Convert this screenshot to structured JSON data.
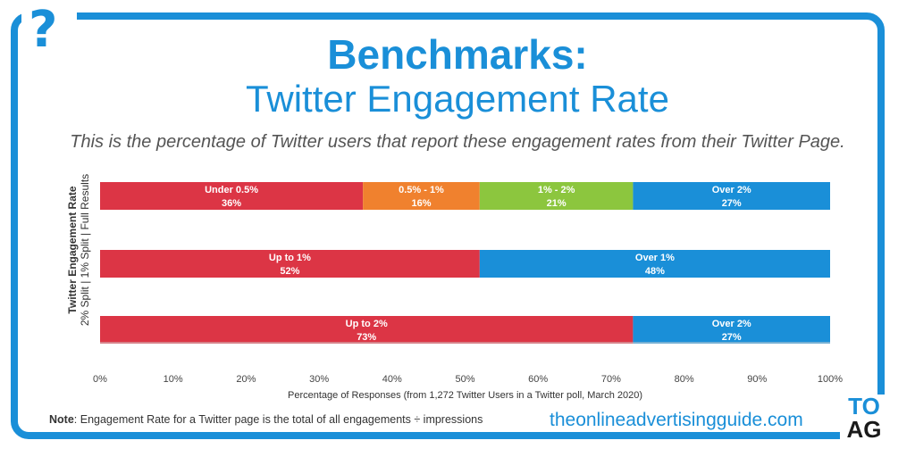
{
  "header": {
    "title_line1": "Benchmarks:",
    "title_line2": "Twitter Engagement Rate",
    "subtitle": "This is the percentage of Twitter users that report these engagement rates from their Twitter Page.",
    "icon": "question-mark-icon",
    "icon_glyph": "?"
  },
  "chart_data": {
    "type": "bar",
    "orientation": "horizontal-stacked-100",
    "ylabel_bold": "Twitter Engagement Rate",
    "ylabel": "2% Split | 1% Split | Full Results",
    "xlabel": "Percentage of Responses (from 1,272 Twitter Users in a Twitter poll, March 2020)",
    "xlim": [
      0,
      100
    ],
    "xticks": [
      "0%",
      "10%",
      "20%",
      "30%",
      "40%",
      "50%",
      "60%",
      "70%",
      "80%",
      "90%",
      "100%"
    ],
    "grid": false,
    "rows": [
      {
        "segments": [
          {
            "label": "Under 0.5%",
            "value": 36,
            "value_label": "36%",
            "color": "#dc3545"
          },
          {
            "label": "0.5% - 1%",
            "value": 16,
            "value_label": "16%",
            "color": "#f0812e"
          },
          {
            "label": "1% - 2%",
            "value": 21,
            "value_label": "21%",
            "color": "#8cc63e"
          },
          {
            "label": "Over 2%",
            "value": 27,
            "value_label": "27%",
            "color": "#1a8fd8"
          }
        ]
      },
      {
        "segments": [
          {
            "label": "Up to 1%",
            "value": 52,
            "value_label": "52%",
            "color": "#dc3545"
          },
          {
            "label": "Over 1%",
            "value": 48,
            "value_label": "48%",
            "color": "#1a8fd8"
          }
        ]
      },
      {
        "segments": [
          {
            "label": "Up to 2%",
            "value": 73,
            "value_label": "73%",
            "color": "#dc3545"
          },
          {
            "label": "Over 2%",
            "value": 27,
            "value_label": "27%",
            "color": "#1a8fd8"
          }
        ]
      }
    ]
  },
  "footer": {
    "note_label": "Note",
    "note_text": ": Engagement Rate for a Twitter page is the total of all engagements ÷ impressions",
    "site": "theonlineadvertisingguide.com",
    "logo_line1": "TO",
    "logo_line2": "AG"
  },
  "colors": {
    "brand_blue": "#1a8fd8",
    "red": "#dc3545",
    "orange": "#f0812e",
    "green": "#8cc63e"
  }
}
